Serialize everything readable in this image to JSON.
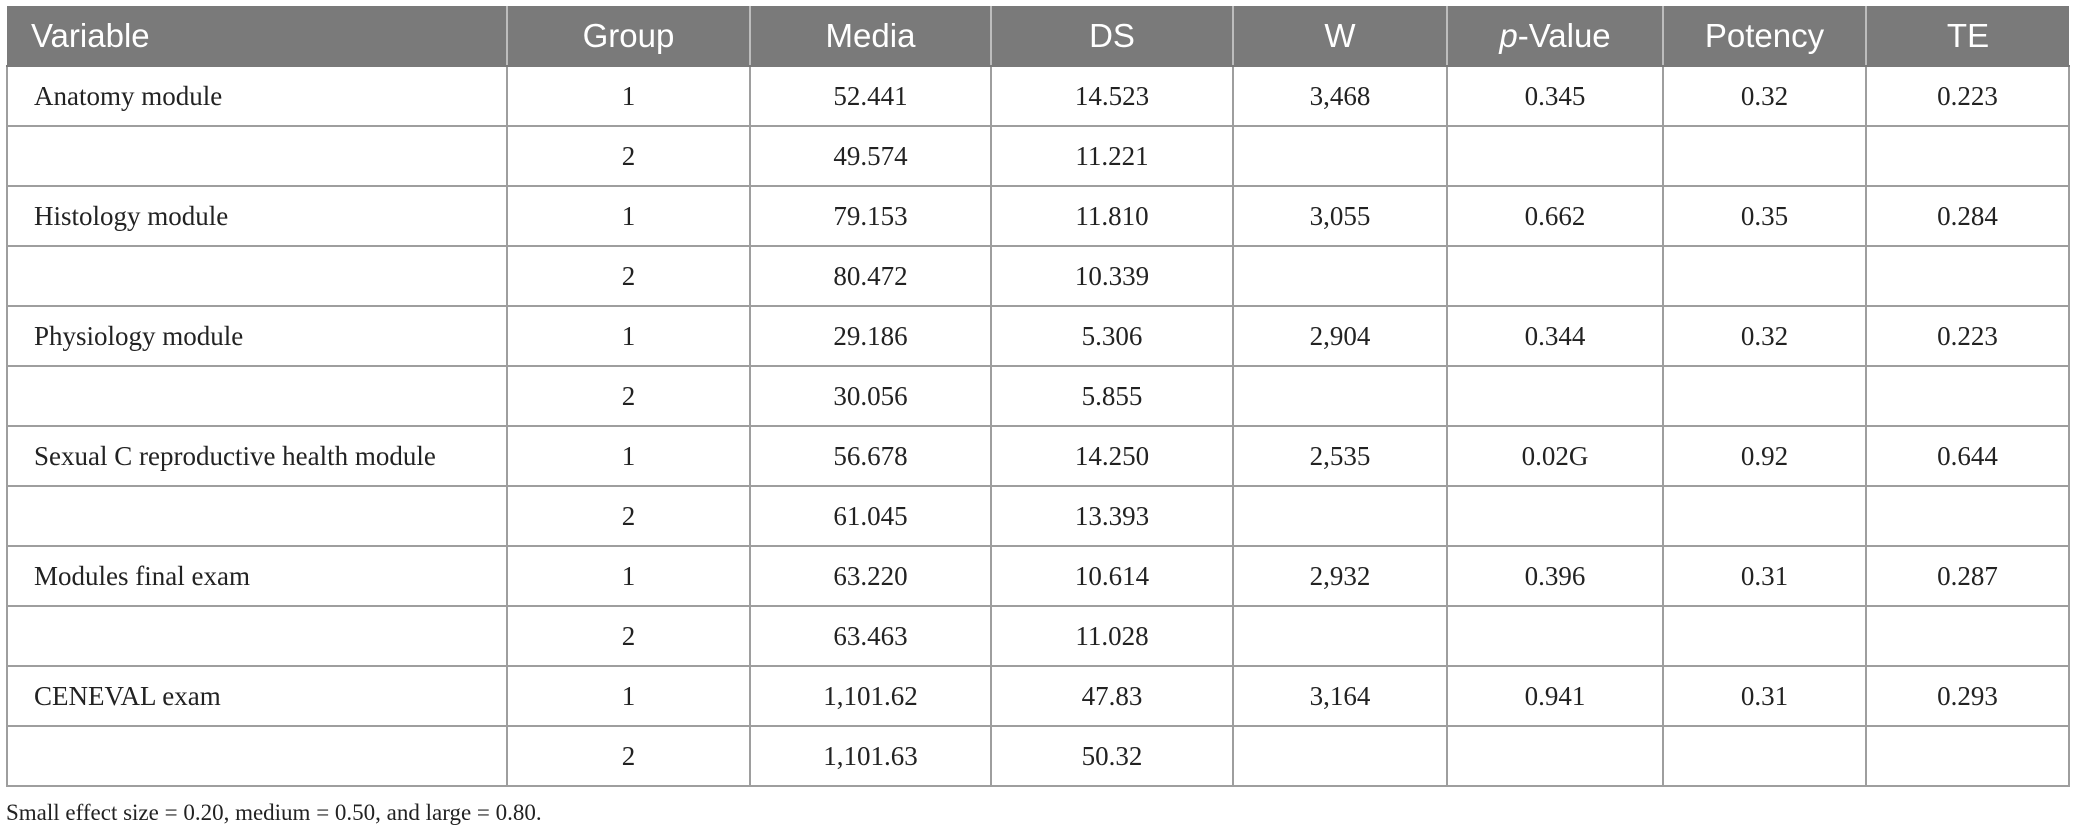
{
  "headers": {
    "variable": "Variable",
    "group": "Group",
    "media": "Media",
    "ds": "DS",
    "w": "W",
    "p_italic": "p",
    "p_rest": "-Value",
    "potency": "Potency",
    "te": "TE"
  },
  "rows": [
    {
      "variable": "Anatomy module",
      "group": "1",
      "media": "52.441",
      "ds": "14.523",
      "w": "3,468",
      "p": "0.345",
      "potency": "0.32",
      "te": "0.223"
    },
    {
      "variable": "",
      "group": "2",
      "media": "49.574",
      "ds": "11.221",
      "w": "",
      "p": "",
      "potency": "",
      "te": ""
    },
    {
      "variable": "Histology module",
      "group": "1",
      "media": "79.153",
      "ds": "11.810",
      "w": "3,055",
      "p": "0.662",
      "potency": "0.35",
      "te": "0.284"
    },
    {
      "variable": "",
      "group": "2",
      "media": "80.472",
      "ds": "10.339",
      "w": "",
      "p": "",
      "potency": "",
      "te": ""
    },
    {
      "variable": "Physiology module",
      "group": "1",
      "media": "29.186",
      "ds": "5.306",
      "w": "2,904",
      "p": "0.344",
      "potency": "0.32",
      "te": "0.223"
    },
    {
      "variable": "",
      "group": "2",
      "media": "30.056",
      "ds": "5.855",
      "w": "",
      "p": "",
      "potency": "",
      "te": ""
    },
    {
      "variable": "Sexual C reproductive health module",
      "group": "1",
      "media": "56.678",
      "ds": "14.250",
      "w": "2,535",
      "p": "0.02G",
      "potency": "0.92",
      "te": "0.644"
    },
    {
      "variable": "",
      "group": "2",
      "media": "61.045",
      "ds": "13.393",
      "w": "",
      "p": "",
      "potency": "",
      "te": ""
    },
    {
      "variable": "Modules final exam",
      "group": "1",
      "media": "63.220",
      "ds": "10.614",
      "w": "2,932",
      "p": "0.396",
      "potency": "0.31",
      "te": "0.287"
    },
    {
      "variable": "",
      "group": "2",
      "media": "63.463",
      "ds": "11.028",
      "w": "",
      "p": "",
      "potency": "",
      "te": ""
    },
    {
      "variable": "CENEVAL exam",
      "group": "1",
      "media": "1,101.62",
      "ds": "47.83",
      "w": "3,164",
      "p": "0.941",
      "potency": "0.31",
      "te": "0.293"
    },
    {
      "variable": "",
      "group": "2",
      "media": "1,101.63",
      "ds": "50.32",
      "w": "",
      "p": "",
      "potency": "",
      "te": ""
    }
  ],
  "note": "Small effect size = 0.20, medium = 0.50, and large = 0.80."
}
